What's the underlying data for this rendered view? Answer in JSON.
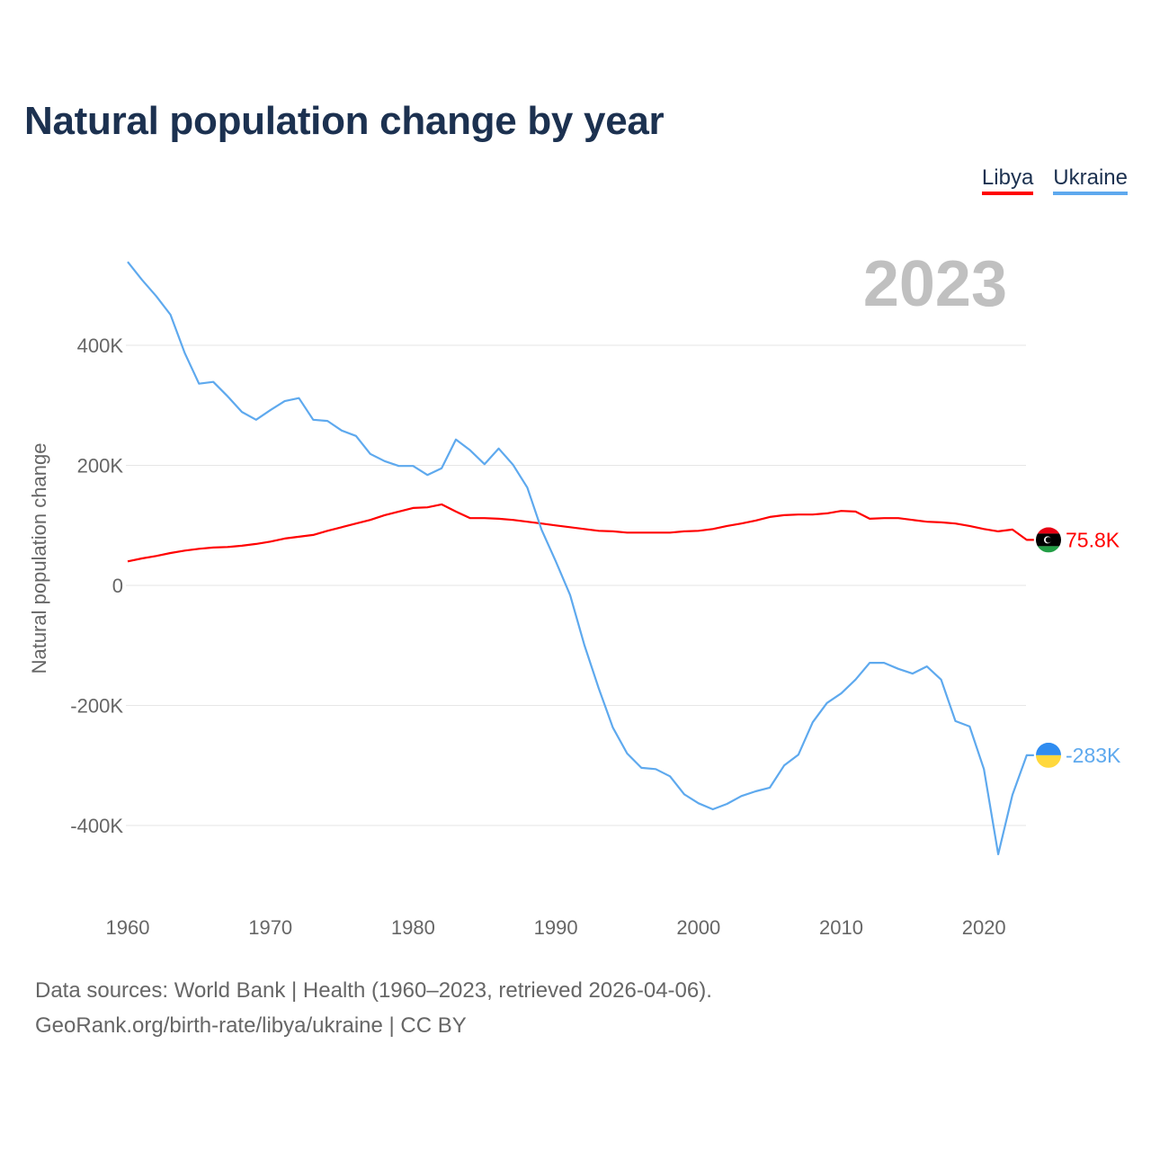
{
  "title": "Natural population change by year",
  "footer": {
    "line1": "Data sources: World Bank | Health (1960–2023, retrieved 2026-04-06).",
    "line2": "GeoRank.org/birth-rate/libya/ukraine | CC BY"
  },
  "chart_data": {
    "type": "line",
    "title": "Natural population change by year",
    "ylabel": "Natural population change",
    "xlabel": "",
    "year_label": "2023",
    "xlim": [
      1960,
      2023
    ],
    "ylim": [
      -500,
      580
    ],
    "y_unit": "thousands",
    "grid": true,
    "legend_placement": "top-right",
    "x_ticks": [
      1960,
      1970,
      1980,
      1990,
      2000,
      2010,
      2020
    ],
    "y_ticks": [
      {
        "v": 400,
        "label": "400K"
      },
      {
        "v": 200,
        "label": "200K"
      },
      {
        "v": 0,
        "label": "0"
      },
      {
        "v": -200,
        "label": "-200K"
      },
      {
        "v": -400,
        "label": "-400K"
      }
    ],
    "x": [
      1960,
      1961,
      1962,
      1963,
      1964,
      1965,
      1966,
      1967,
      1968,
      1969,
      1970,
      1971,
      1972,
      1973,
      1974,
      1975,
      1976,
      1977,
      1978,
      1979,
      1980,
      1981,
      1982,
      1983,
      1984,
      1985,
      1986,
      1987,
      1988,
      1989,
      1990,
      1991,
      1992,
      1993,
      1994,
      1995,
      1996,
      1997,
      1998,
      1999,
      2000,
      2001,
      2002,
      2003,
      2004,
      2005,
      2006,
      2007,
      2008,
      2009,
      2010,
      2011,
      2012,
      2013,
      2014,
      2015,
      2016,
      2017,
      2018,
      2019,
      2020,
      2021,
      2022,
      2023
    ],
    "series": [
      {
        "name": "Libya",
        "color": "#ff0000",
        "end_label": "75.8K",
        "values": [
          40,
          45,
          49,
          54,
          58,
          61,
          63,
          64,
          66,
          69,
          73,
          78,
          81,
          84,
          91,
          97,
          103,
          109,
          117,
          123,
          129,
          130,
          135,
          123,
          112,
          112,
          111,
          109,
          106,
          103,
          100,
          97,
          94,
          91,
          90,
          88,
          88,
          88,
          88,
          90,
          91,
          94,
          99,
          103,
          108,
          114,
          117,
          118,
          118,
          120,
          124,
          123,
          111,
          112,
          112,
          109,
          106,
          105,
          103,
          99,
          94,
          90,
          93,
          75.8
        ]
      },
      {
        "name": "Ukraine",
        "color": "#5ea9ee",
        "end_label": "-283K",
        "values": [
          539,
          509,
          482,
          451,
          387,
          336,
          339,
          315,
          289,
          276,
          292,
          307,
          312,
          276,
          274,
          258,
          249,
          219,
          207,
          199,
          199,
          184,
          195,
          243,
          225,
          202,
          228,
          201,
          163,
          93,
          40,
          -16,
          -99,
          -171,
          -237,
          -280,
          -304,
          -306,
          -318,
          -348,
          -363,
          -373,
          -364,
          -351,
          -343,
          -337,
          -300,
          -282,
          -228,
          -196,
          -180,
          -157,
          -129,
          -129,
          -139,
          -147,
          -135,
          -157,
          -226,
          -235,
          -306,
          -448,
          -349,
          -283
        ]
      }
    ]
  }
}
